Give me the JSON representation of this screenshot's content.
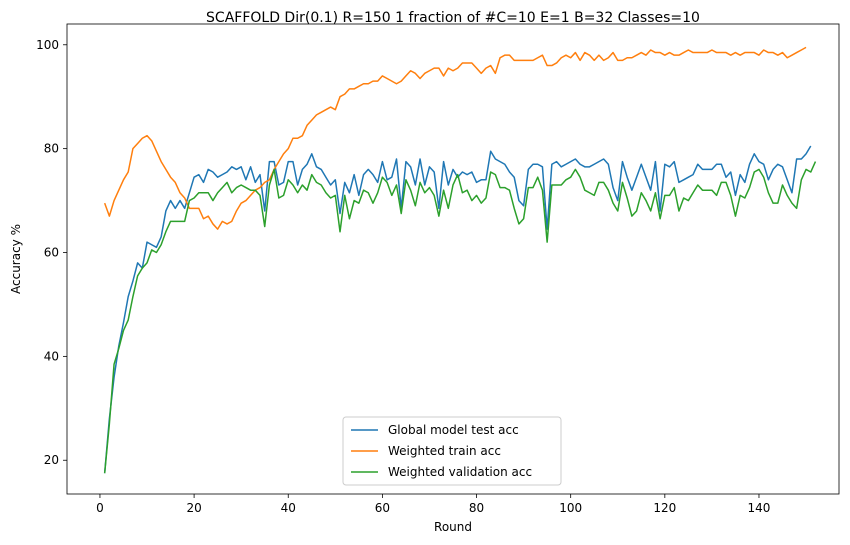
{
  "chart_data": {
    "type": "line",
    "title": "SCAFFOLD Dir(0.1) R=150 1 fraction of #C=10 E=1 B=32  Classes=10",
    "xlabel": "Round",
    "ylabel": "Accuracy %",
    "xlim": [
      -7,
      157
    ],
    "ylim": [
      13.5,
      104
    ],
    "xticks": [
      0,
      20,
      40,
      60,
      80,
      100,
      120,
      140
    ],
    "yticks": [
      20,
      40,
      60,
      80,
      100
    ],
    "grid": false,
    "legend_position": "bottom-center",
    "series": [
      {
        "name": "Global model test acc",
        "color": "#1f77b4",
        "values": [
          17.5,
          28.0,
          36.0,
          42.0,
          46.5,
          51.5,
          54.5,
          58.0,
          57.0,
          62.0,
          61.5,
          61.0,
          63.0,
          68.0,
          70.0,
          68.5,
          70.0,
          68.5,
          71.5,
          74.5,
          75.0,
          73.5,
          76.0,
          75.5,
          74.5,
          75.0,
          75.5,
          76.5,
          76.0,
          76.5,
          74.0,
          76.5,
          73.5,
          75.0,
          68.0,
          77.5,
          77.5,
          73.0,
          73.5,
          77.5,
          77.5,
          73.0,
          76.0,
          77.0,
          79.0,
          76.5,
          76.0,
          74.5,
          73.0,
          74.0,
          67.5,
          73.5,
          71.5,
          75.0,
          71.0,
          75.0,
          76.0,
          75.0,
          73.5,
          77.5,
          74.0,
          74.5,
          78.0,
          68.5,
          77.5,
          76.5,
          73.0,
          78.0,
          73.0,
          76.5,
          75.5,
          68.5,
          77.5,
          73.0,
          76.0,
          74.5,
          75.5,
          75.0,
          75.5,
          73.5,
          74.0,
          74.0,
          79.5,
          78.0,
          77.5,
          77.0,
          75.5,
          74.5,
          70.0,
          69.0,
          76.0,
          77.0,
          77.0,
          76.5,
          64.5,
          77.0,
          77.5,
          76.5,
          77.0,
          77.5,
          78.0,
          77.0,
          76.5,
          76.5,
          77.0,
          77.5,
          78.0,
          77.0,
          72.5,
          70.0,
          77.5,
          74.5,
          72.0,
          74.5,
          77.0,
          74.5,
          72.0,
          77.5,
          68.0,
          77.0,
          76.5,
          77.5,
          73.5,
          74.0,
          74.5,
          75.0,
          77.0,
          76.0,
          76.0,
          76.0,
          77.0,
          77.0,
          74.5,
          75.5,
          71.0,
          75.0,
          73.5,
          77.0,
          79.0,
          77.5,
          77.0,
          74.0,
          76.0,
          77.0,
          76.5,
          74.0,
          71.5,
          78.0,
          78.0,
          79.0,
          80.5
        ]
      },
      {
        "name": "Weighted train acc",
        "color": "#ff7f0e",
        "values": [
          69.5,
          67.0,
          70.0,
          72.0,
          74.0,
          75.5,
          80.0,
          81.0,
          82.0,
          82.5,
          81.5,
          79.5,
          77.5,
          76.0,
          74.5,
          73.5,
          71.5,
          70.5,
          68.5,
          68.5,
          68.5,
          66.5,
          67.0,
          65.5,
          64.5,
          66.0,
          65.5,
          66.0,
          68.0,
          69.5,
          70.0,
          71.0,
          72.0,
          72.5,
          73.5,
          74.0,
          76.0,
          77.5,
          79.0,
          80.0,
          82.0,
          82.0,
          82.5,
          84.5,
          85.5,
          86.5,
          87.0,
          87.5,
          88.0,
          87.5,
          90.0,
          90.5,
          91.5,
          91.5,
          92.0,
          92.5,
          92.5,
          93.0,
          93.0,
          94.0,
          93.5,
          93.0,
          92.5,
          93.0,
          94.0,
          95.0,
          94.5,
          93.5,
          94.5,
          95.0,
          95.5,
          95.5,
          94.0,
          95.5,
          95.0,
          95.5,
          96.5,
          96.5,
          96.5,
          95.5,
          94.5,
          95.5,
          96.0,
          94.5,
          97.5,
          98.0,
          98.0,
          97.0,
          97.0,
          97.0,
          97.0,
          97.0,
          97.5,
          98.0,
          96.0,
          96.0,
          96.5,
          97.5,
          98.0,
          97.5,
          98.5,
          97.0,
          98.5,
          98.0,
          97.0,
          98.0,
          97.0,
          97.5,
          98.5,
          97.0,
          97.0,
          97.5,
          97.5,
          98.0,
          98.5,
          98.0,
          99.0,
          98.5,
          98.5,
          98.0,
          98.5,
          98.0,
          98.0,
          98.5,
          99.0,
          98.5,
          98.5,
          98.5,
          98.5,
          99.0,
          98.5,
          98.5,
          98.5,
          98.0,
          98.5,
          98.0,
          98.5,
          98.5,
          98.5,
          98.0,
          99.0,
          98.5,
          98.5,
          98.0,
          98.5,
          97.5,
          98.0,
          98.5,
          99.0,
          99.5
        ]
      },
      {
        "name": "Weighted validation acc",
        "color": "#2ca02c",
        "values": [
          17.5,
          27.0,
          38.5,
          41.5,
          45.0,
          47.0,
          51.5,
          55.5,
          57.0,
          58.0,
          60.5,
          60.0,
          61.5,
          64.0,
          66.0,
          66.0,
          66.0,
          66.0,
          70.0,
          70.5,
          71.5,
          71.5,
          71.5,
          70.0,
          71.5,
          72.5,
          73.5,
          71.5,
          72.5,
          73.0,
          72.5,
          72.0,
          72.0,
          71.0,
          65.0,
          73.0,
          76.0,
          70.5,
          71.0,
          74.0,
          73.0,
          71.5,
          73.0,
          72.0,
          75.0,
          73.5,
          73.0,
          71.5,
          70.5,
          71.0,
          64.0,
          71.0,
          66.5,
          70.0,
          69.5,
          72.0,
          71.5,
          69.5,
          71.5,
          74.5,
          73.5,
          71.0,
          73.0,
          67.5,
          74.0,
          72.0,
          69.0,
          73.5,
          71.5,
          72.5,
          71.0,
          67.0,
          72.0,
          68.5,
          73.0,
          75.0,
          71.5,
          72.0,
          70.0,
          71.0,
          69.5,
          70.5,
          75.5,
          75.0,
          72.5,
          72.5,
          72.0,
          68.5,
          65.5,
          66.5,
          72.5,
          72.5,
          74.5,
          72.0,
          62.0,
          73.0,
          73.0,
          73.0,
          74.0,
          74.5,
          76.0,
          74.5,
          72.0,
          71.5,
          71.0,
          73.5,
          73.5,
          72.0,
          69.5,
          68.0,
          73.5,
          70.5,
          67.0,
          68.0,
          71.5,
          70.0,
          68.0,
          71.5,
          66.5,
          71.0,
          71.0,
          72.5,
          68.0,
          70.5,
          70.0,
          71.5,
          73.0,
          72.0,
          72.0,
          72.0,
          71.0,
          73.5,
          73.5,
          71.0,
          67.0,
          71.0,
          70.5,
          72.5,
          75.5,
          76.0,
          74.5,
          71.5,
          69.5,
          69.5,
          73.0,
          71.0,
          69.5,
          68.5,
          74.0,
          76.0,
          75.5,
          77.5
        ]
      }
    ]
  }
}
